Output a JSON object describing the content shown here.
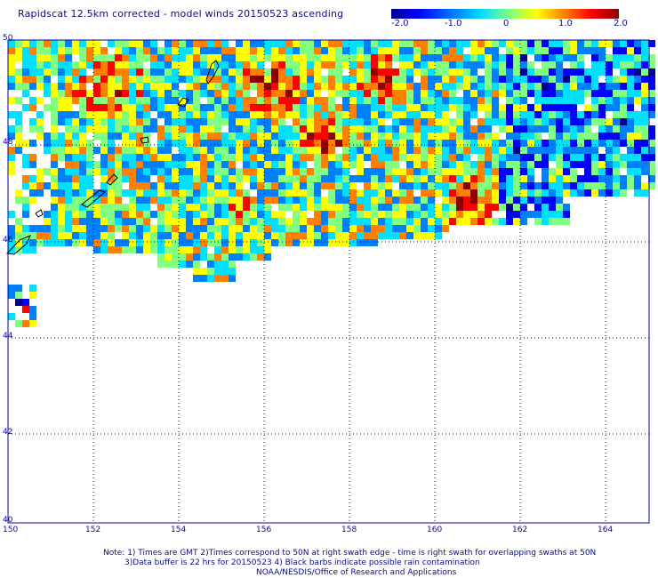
{
  "title": "Rapidscat 12.5km corrected - model winds 20150523 ascending",
  "colorbar": {
    "tick_labels": [
      "-2.0",
      "-1.0",
      "0",
      "1.0",
      "2.0"
    ],
    "range": [
      -2.0,
      2.0
    ],
    "colors": [
      "#00008c",
      "#0000ff",
      "#0080ff",
      "#00e0ff",
      "#80ff80",
      "#ffff00",
      "#ff8000",
      "#ff0000",
      "#8c0000"
    ]
  },
  "map": {
    "lat_labels": [
      "50",
      "48",
      "46",
      "44",
      "42",
      "40"
    ],
    "lon_labels": [
      "150",
      "152",
      "154",
      "156",
      "158",
      "160",
      "162",
      "164"
    ],
    "lat_range": [
      40,
      50
    ],
    "lon_range": [
      150,
      165
    ],
    "grid_color": "#0000a0"
  },
  "footer": {
    "line1": "Note: 1) Times are GMT 2)Times correspond to 50N at right swath edge - time is right swath for overlapping swaths at 50N",
    "line2": "3)Data buffer is 22 hrs for 20150523 4) Black barbs indicate possible rain contamination",
    "line3": "NOAA/NESDIS/Office of Research and Applications"
  }
}
